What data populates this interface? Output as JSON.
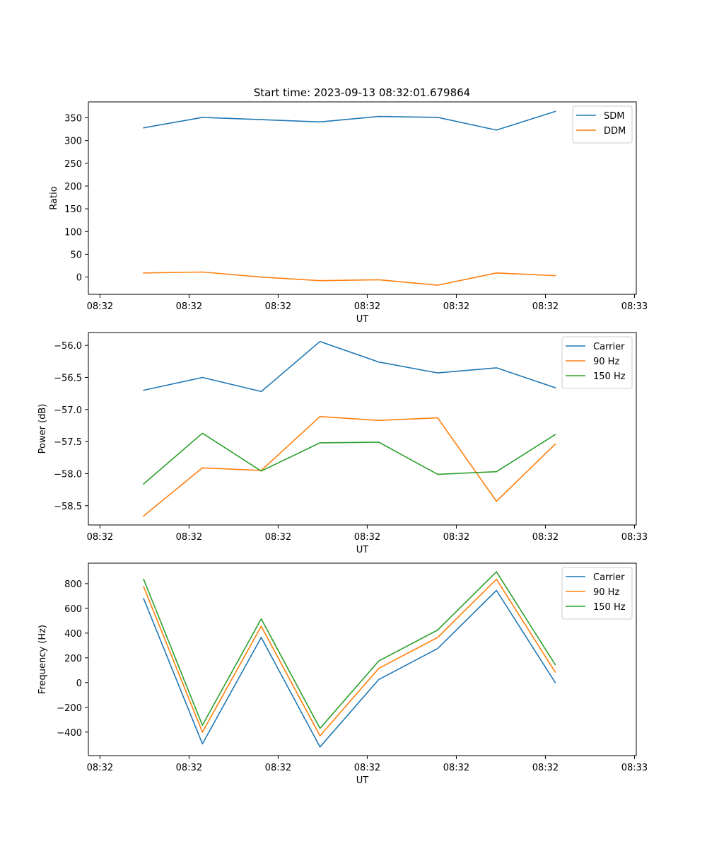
{
  "figure_title": "Start time: 2023-09-13 08:32:01.679864",
  "chart_data": [
    {
      "type": "line",
      "name": "ratio",
      "title": "Start time: 2023-09-13 08:32:01.679864",
      "xlabel": "UT",
      "ylabel": "Ratio",
      "x_ticks": [
        "08:32",
        "08:32",
        "08:32",
        "08:32",
        "08:32",
        "08:32",
        "08:33"
      ],
      "x_tick_positions": [
        0,
        1,
        2,
        3,
        4,
        5,
        6
      ],
      "xlim": [
        -0.13,
        6.02
      ],
      "x": [
        0.49,
        1.15,
        1.81,
        2.47,
        3.13,
        3.79,
        4.45,
        5.11
      ],
      "ylim": [
        -38,
        385
      ],
      "yticks": [
        0,
        50,
        100,
        150,
        200,
        250,
        300,
        350
      ],
      "legend_position": "top-right",
      "series": [
        {
          "name": "SDM",
          "color": "#1f77b4",
          "values": [
            328,
            351,
            346,
            341,
            353,
            351,
            323,
            364
          ]
        },
        {
          "name": "DDM",
          "color": "#ff7f0e",
          "values": [
            9,
            11,
            0,
            -8,
            -6,
            -18,
            9,
            3
          ]
        }
      ]
    },
    {
      "type": "line",
      "name": "power",
      "title": "",
      "xlabel": "UT",
      "ylabel": "Power (dB)",
      "x_ticks": [
        "08:32",
        "08:32",
        "08:32",
        "08:32",
        "08:32",
        "08:32",
        "08:33"
      ],
      "x_tick_positions": [
        0,
        1,
        2,
        3,
        4,
        5,
        6
      ],
      "xlim": [
        -0.13,
        6.02
      ],
      "x": [
        0.49,
        1.15,
        1.81,
        2.47,
        3.13,
        3.79,
        4.45,
        5.11
      ],
      "ylim": [
        -58.8,
        -55.8
      ],
      "yticks": [
        -58.5,
        -58.0,
        -57.5,
        -57.0,
        -56.5,
        -56.0
      ],
      "ytick_labels": [
        "−58.5",
        "−58.0",
        "−57.5",
        "−57.0",
        "−56.5",
        "−56.0"
      ],
      "legend_position": "top-right",
      "series": [
        {
          "name": "Carrier",
          "color": "#1f77b4",
          "values": [
            -56.7,
            -56.5,
            -56.72,
            -55.94,
            -56.26,
            -56.43,
            -56.35,
            -56.66
          ]
        },
        {
          "name": "90 Hz",
          "color": "#ff7f0e",
          "values": [
            -58.66,
            -57.91,
            -57.95,
            -57.11,
            -57.17,
            -57.13,
            -58.43,
            -57.54
          ]
        },
        {
          "name": "150 Hz",
          "color": "#2ca02c",
          "values": [
            -58.16,
            -57.37,
            -57.96,
            -57.52,
            -57.51,
            -58.01,
            -57.97,
            -57.39
          ]
        }
      ]
    },
    {
      "type": "line",
      "name": "frequency",
      "title": "",
      "xlabel": "UT",
      "ylabel": "Frequency (Hz)",
      "x_ticks": [
        "08:32",
        "08:32",
        "08:32",
        "08:32",
        "08:32",
        "08:32",
        "08:33"
      ],
      "x_tick_positions": [
        0,
        1,
        2,
        3,
        4,
        5,
        6
      ],
      "xlim": [
        -0.13,
        6.02
      ],
      "x": [
        0.49,
        1.15,
        1.81,
        2.47,
        3.13,
        3.79,
        4.45,
        5.11
      ],
      "ylim": [
        -590,
        965
      ],
      "yticks": [
        -400,
        -200,
        0,
        200,
        400,
        600,
        800
      ],
      "ytick_labels": [
        "−400",
        "−200",
        "0",
        "200",
        "400",
        "600",
        "800"
      ],
      "legend_position": "top-right",
      "series": [
        {
          "name": "Carrier",
          "color": "#1f77b4",
          "values": [
            680,
            -495,
            365,
            -520,
            25,
            275,
            745,
            0
          ]
        },
        {
          "name": "90 Hz",
          "color": "#ff7f0e",
          "values": [
            775,
            -400,
            455,
            -430,
            115,
            365,
            835,
            85
          ]
        },
        {
          "name": "150 Hz",
          "color": "#2ca02c",
          "values": [
            835,
            -345,
            515,
            -370,
            175,
            425,
            895,
            145
          ]
        }
      ]
    }
  ]
}
